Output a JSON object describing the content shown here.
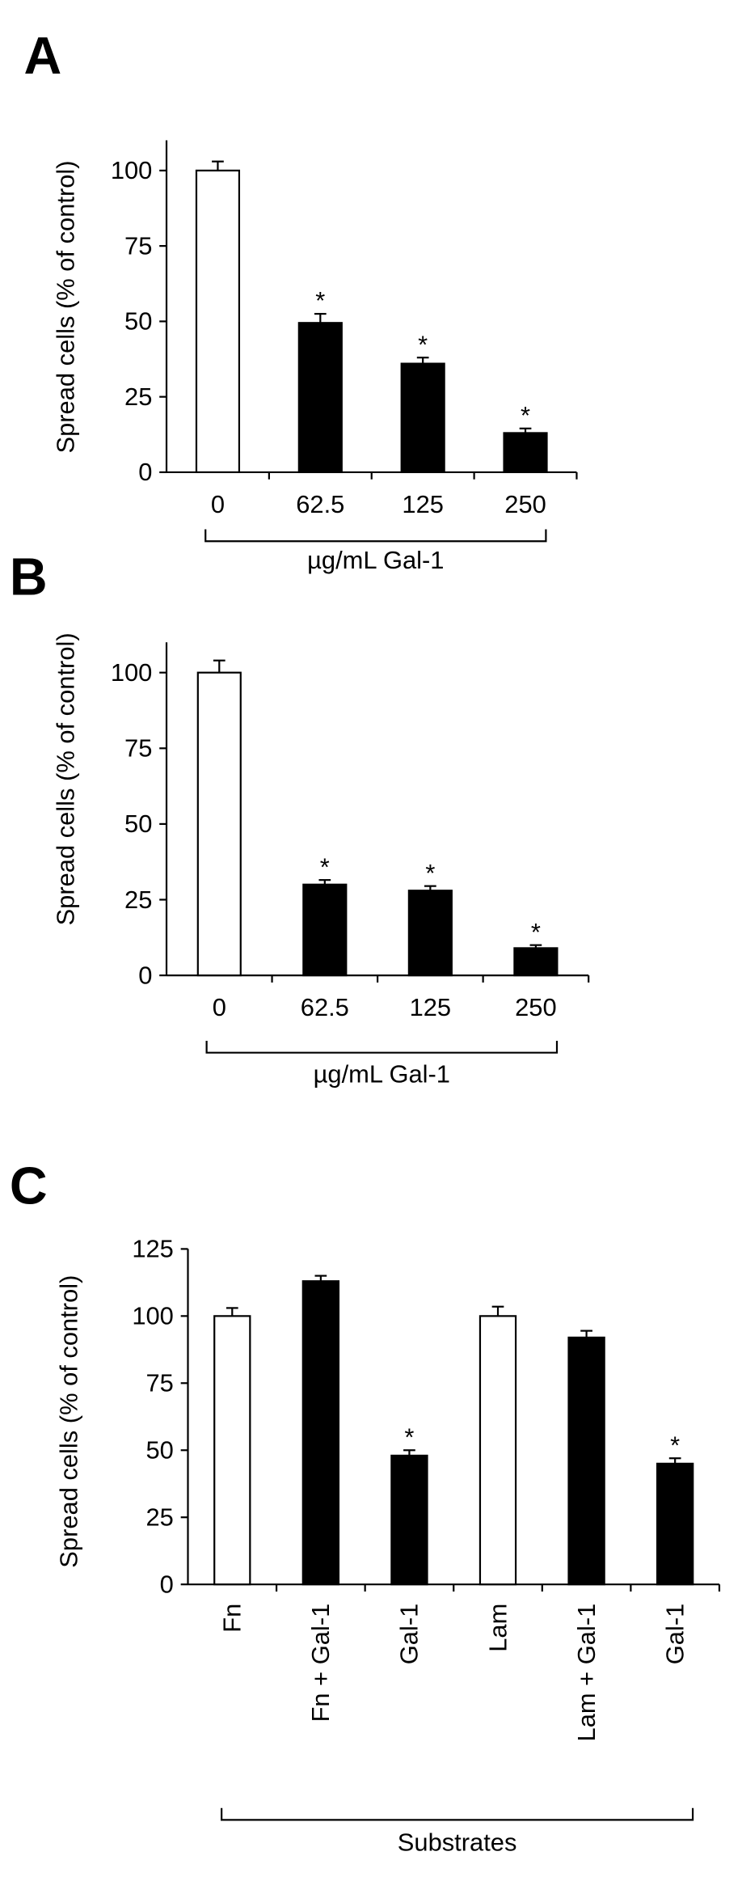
{
  "chart_data": [
    {
      "type": "bar",
      "panel_label": "A",
      "ylabel": "Spread cells (% of control)",
      "xlabel": "µg/mL Gal-1",
      "categories": [
        "0",
        "62.5",
        "125",
        "250"
      ],
      "values": [
        100,
        49.5,
        36,
        13
      ],
      "errors": [
        3,
        3,
        2,
        1.5
      ],
      "colors": [
        "#ffffff",
        "#000000",
        "#000000",
        "#000000"
      ],
      "significance": [
        null,
        "*",
        "*",
        "*"
      ],
      "ylim": [
        0,
        110
      ],
      "yticks": [
        0,
        25,
        50,
        75,
        100
      ]
    },
    {
      "type": "bar",
      "panel_label": "B",
      "ylabel": "Spread cells (% of control)",
      "xlabel": "µg/mL Gal-1",
      "categories": [
        "0",
        "62.5",
        "125",
        "250"
      ],
      "values": [
        100,
        30,
        28,
        9
      ],
      "errors": [
        4,
        1.5,
        1.5,
        1
      ],
      "colors": [
        "#ffffff",
        "#000000",
        "#000000",
        "#000000"
      ],
      "significance": [
        null,
        "*",
        "*",
        "*"
      ],
      "ylim": [
        0,
        110
      ],
      "yticks": [
        0,
        25,
        50,
        75,
        100
      ]
    },
    {
      "type": "bar",
      "panel_label": "C",
      "ylabel": "Spread cells (% of control)",
      "xlabel": "Substrates",
      "categories": [
        "Fn",
        "Fn + Gal-1",
        "Gal-1",
        "Lam",
        "Lam + Gal-1",
        "Gal-1"
      ],
      "values": [
        100,
        113,
        48,
        100,
        92,
        45
      ],
      "errors": [
        3,
        2,
        2,
        3.5,
        2.5,
        2
      ],
      "colors": [
        "#ffffff",
        "#000000",
        "#000000",
        "#ffffff",
        "#000000",
        "#000000"
      ],
      "significance": [
        null,
        null,
        "*",
        null,
        null,
        "*"
      ],
      "ylim": [
        0,
        125
      ],
      "yticks": [
        0,
        25,
        50,
        75,
        100,
        125
      ]
    }
  ]
}
